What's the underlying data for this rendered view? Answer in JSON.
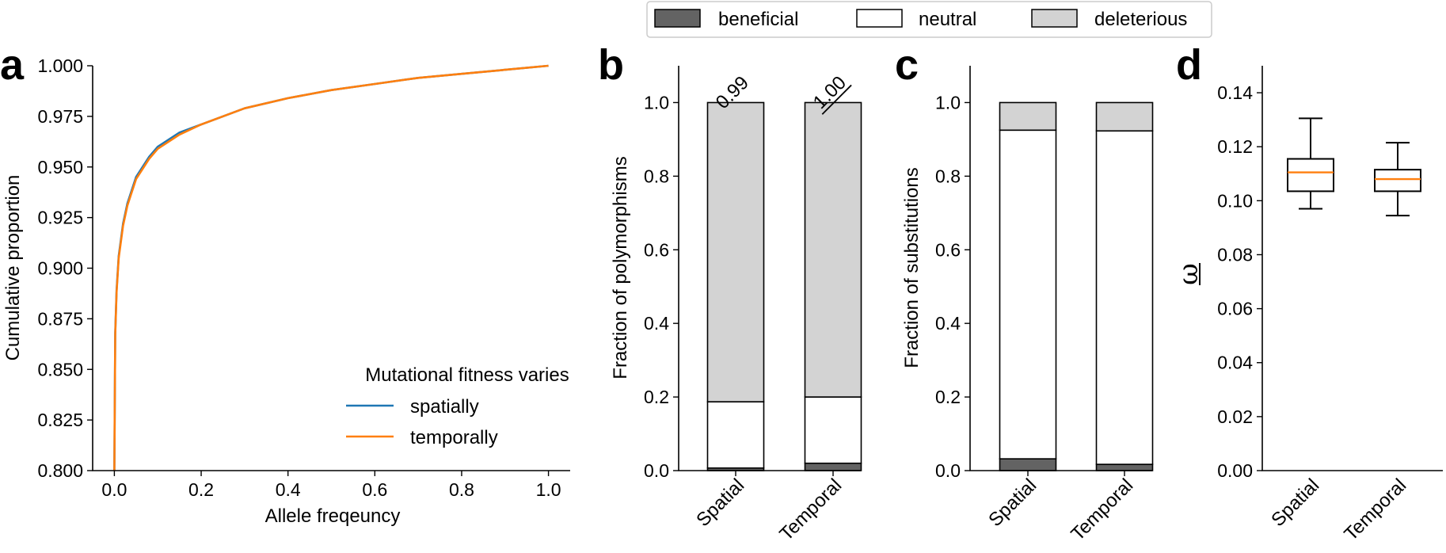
{
  "legend": {
    "items": [
      {
        "label": "beneficial",
        "color": "#636363"
      },
      {
        "label": "neutral",
        "color": "#ffffff"
      },
      {
        "label": "deleterious",
        "color": "#d3d3d3"
      }
    ]
  },
  "chart_data": [
    {
      "panel": "a",
      "type": "line",
      "title": "",
      "xlabel": "Allele freqeuncy",
      "ylabel": "Cumulative proportion",
      "xlim": [
        -0.05,
        1.05
      ],
      "ylim": [
        0.8,
        1.0
      ],
      "xticks": [
        0.0,
        0.2,
        0.4,
        0.6,
        0.8,
        1.0
      ],
      "xtick_labels": [
        "0.0",
        "0.2",
        "0.4",
        "0.6",
        "0.8",
        "1.0"
      ],
      "yticks": [
        0.8,
        0.825,
        0.85,
        0.875,
        0.9,
        0.925,
        0.95,
        0.975,
        1.0
      ],
      "ytick_labels": [
        "0.800",
        "0.825",
        "0.850",
        "0.875",
        "0.900",
        "0.925",
        "0.950",
        "0.975",
        "1.000"
      ],
      "legend_title": "Mutational fitness varies",
      "legend_position": "lower-right",
      "series": [
        {
          "name": "spatially",
          "color": "#1f77b4",
          "x": [
            0.0,
            0.002,
            0.005,
            0.01,
            0.02,
            0.03,
            0.05,
            0.08,
            0.1,
            0.15,
            0.2,
            0.3,
            0.4,
            0.5,
            0.6,
            0.7,
            0.8,
            0.9,
            1.0
          ],
          "y": [
            0.8,
            0.868,
            0.889,
            0.906,
            0.922,
            0.932,
            0.945,
            0.955,
            0.96,
            0.967,
            0.971,
            0.979,
            0.984,
            0.988,
            0.991,
            0.994,
            0.996,
            0.998,
            1.0
          ]
        },
        {
          "name": "temporally",
          "color": "#ff7f0e",
          "x": [
            0.0,
            0.002,
            0.005,
            0.01,
            0.02,
            0.03,
            0.05,
            0.08,
            0.1,
            0.15,
            0.2,
            0.3,
            0.4,
            0.5,
            0.6,
            0.7,
            0.8,
            0.9,
            1.0
          ],
          "y": [
            0.8,
            0.867,
            0.888,
            0.905,
            0.921,
            0.931,
            0.944,
            0.954,
            0.959,
            0.966,
            0.971,
            0.979,
            0.984,
            0.988,
            0.991,
            0.994,
            0.996,
            0.998,
            1.0
          ]
        }
      ]
    },
    {
      "panel": "b",
      "type": "bar",
      "stacked": true,
      "ylabel": "Fraction of polymorphisms",
      "ylim": [
        0,
        1.1
      ],
      "yticks": [
        0.0,
        0.2,
        0.4,
        0.6,
        0.8,
        1.0
      ],
      "ytick_labels": [
        "0.0",
        "0.2",
        "0.4",
        "0.6",
        "0.8",
        "1.0"
      ],
      "categories": [
        "Spatial",
        "Temporal"
      ],
      "series": [
        {
          "name": "beneficial",
          "values": [
            0.007,
            0.02
          ]
        },
        {
          "name": "neutral",
          "values": [
            0.18,
            0.18
          ]
        },
        {
          "name": "deleterious",
          "values": [
            0.813,
            0.8
          ]
        }
      ],
      "bar_annotations": [
        {
          "text": "0.99",
          "underline": false
        },
        {
          "text": "1.00",
          "underline": true
        }
      ]
    },
    {
      "panel": "c",
      "type": "bar",
      "stacked": true,
      "ylabel": "Fraction of substitutions",
      "ylim": [
        0,
        1.1
      ],
      "yticks": [
        0.0,
        0.2,
        0.4,
        0.6,
        0.8,
        1.0
      ],
      "ytick_labels": [
        "0.0",
        "0.2",
        "0.4",
        "0.6",
        "0.8",
        "1.0"
      ],
      "categories": [
        "Spatial",
        "Temporal"
      ],
      "series": [
        {
          "name": "beneficial",
          "values": [
            0.032,
            0.017
          ]
        },
        {
          "name": "neutral",
          "values": [
            0.893,
            0.906
          ]
        },
        {
          "name": "deleterious",
          "values": [
            0.075,
            0.077
          ]
        }
      ]
    },
    {
      "panel": "d",
      "type": "box",
      "ylabel": "ω",
      "ylim": [
        0,
        0.15
      ],
      "yticks": [
        0.0,
        0.02,
        0.04,
        0.06,
        0.08,
        0.1,
        0.12,
        0.14
      ],
      "ytick_labels": [
        "0.00",
        "0.02",
        "0.04",
        "0.06",
        "0.08",
        "0.10",
        "0.12",
        "0.14"
      ],
      "categories": [
        "Spatial",
        "Temporal"
      ],
      "median_color": "#ff7f0e",
      "boxes": [
        {
          "whisker_low": 0.097,
          "q1": 0.1035,
          "median": 0.1105,
          "q3": 0.1155,
          "whisker_high": 0.1305
        },
        {
          "whisker_low": 0.0945,
          "q1": 0.1035,
          "median": 0.108,
          "q3": 0.1115,
          "whisker_high": 0.1215
        }
      ]
    }
  ]
}
